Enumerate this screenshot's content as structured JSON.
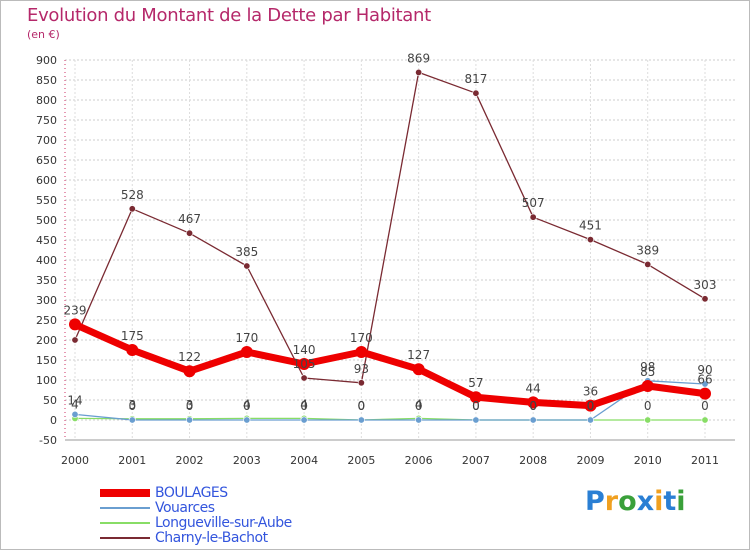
{
  "chart_data": {
    "type": "line",
    "title": "Evolution du Montant de la Dette par Habitant",
    "subtitle": "(en €)",
    "xlabel": "",
    "ylabel": "",
    "ylim": [
      -50,
      900
    ],
    "yticks": [
      -50,
      0,
      50,
      100,
      150,
      200,
      250,
      300,
      350,
      400,
      450,
      500,
      550,
      600,
      650,
      700,
      750,
      800,
      850,
      900
    ],
    "categories": [
      "2000",
      "2001",
      "2002",
      "2003",
      "2004",
      "2005",
      "2006",
      "2007",
      "2008",
      "2009",
      "2010",
      "2011"
    ],
    "series": [
      {
        "name": "Charny-le-Bachot",
        "color": "#7a2a32",
        "values": [
          200,
          528,
          467,
          385,
          105,
          93,
          869,
          817,
          507,
          451,
          389,
          303
        ],
        "labels": [
          "",
          "528",
          "467",
          "385",
          "105",
          "93",
          "869",
          "817",
          "507",
          "451",
          "389",
          "303"
        ]
      },
      {
        "name": "Longueville-sur-Aube",
        "color": "#88dd66",
        "values": [
          4,
          3,
          3,
          4,
          4,
          0,
          4,
          0,
          0,
          0,
          0,
          0
        ],
        "labels": [
          "4",
          "3",
          "3",
          "4",
          "4",
          "0",
          "4",
          "0",
          "0",
          "0",
          "0",
          "0"
        ]
      },
      {
        "name": "Vouarces",
        "color": "#6a9ed0",
        "values": [
          14,
          0,
          0,
          0,
          0,
          0,
          0,
          0,
          0,
          0,
          98,
          90
        ],
        "labels": [
          "14",
          "0",
          "0",
          "0",
          "0",
          "0",
          "0",
          "0",
          "0",
          "0",
          "98",
          "90"
        ]
      },
      {
        "name": "BOULAGES",
        "color": "#ee0000",
        "values": [
          239,
          175,
          122,
          170,
          140,
          170,
          127,
          57,
          44,
          36,
          85,
          66
        ],
        "labels": [
          "239",
          "175",
          "122",
          "170",
          "140",
          "170",
          "127",
          "57",
          "44",
          "36",
          "85",
          "66"
        ]
      }
    ],
    "legend": [
      {
        "label": "BOULAGES",
        "color": "#ee0000",
        "text_color": "#3355dd"
      },
      {
        "label": "Vouarces",
        "color": "#6a9ed0",
        "text_color": "#3355dd"
      },
      {
        "label": "Longueville-sur-Aube",
        "color": "#88dd66",
        "text_color": "#3355dd"
      },
      {
        "label": "Charny-le-Bachot",
        "color": "#7a2a32",
        "text_color": "#3355dd"
      }
    ]
  },
  "brand": {
    "letters": [
      "P",
      "r",
      "o",
      "x",
      "i",
      "t",
      "i"
    ],
    "colors": [
      "#2a7fd4",
      "#f0a020",
      "#3aa03a",
      "#2a7fd4",
      "#f0a020",
      "#2a7fd4",
      "#3aa03a"
    ]
  }
}
